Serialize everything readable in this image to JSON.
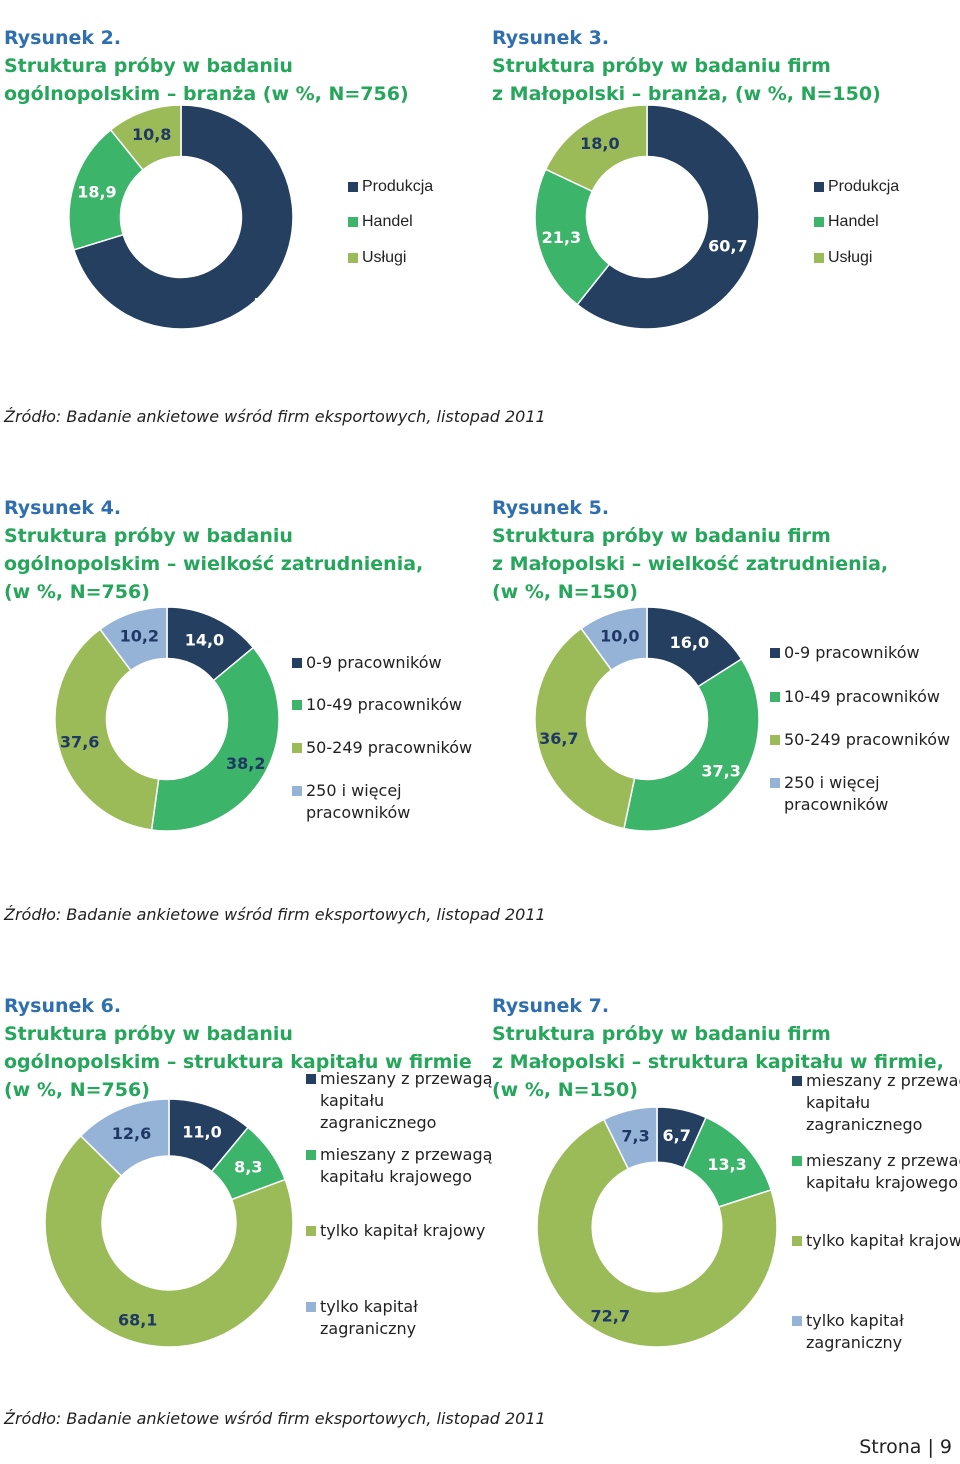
{
  "colors": {
    "navy": "#253f60",
    "green": "#3cb46a",
    "olive": "#9bbb59",
    "lightblue": "#95b3d7",
    "label_dark": "#203864",
    "label_light": "#ffffff"
  },
  "chart_data": [
    {
      "type": "pie",
      "title_num": "Rysunek 2.",
      "title": "Struktura próby w badaniu\nogólnopolskim – branża (w %, N=756)",
      "categories": [
        "Produkcja",
        "Handel",
        "Usługi"
      ],
      "values": [
        70.2,
        18.9,
        10.8
      ],
      "value_labels": [
        "70,2",
        "18,9",
        "10,8"
      ],
      "legend_position": "right"
    },
    {
      "type": "pie",
      "title_num": "Rysunek 3.",
      "title": "Struktura próby w badaniu firm\nz Małopolski – branża, (w %, N=150)",
      "categories": [
        "Produkcja",
        "Handel",
        "Usługi"
      ],
      "values": [
        60.7,
        21.3,
        18.0
      ],
      "value_labels": [
        "60,7",
        "21,3",
        "18,0"
      ],
      "legend_position": "right"
    },
    {
      "type": "pie",
      "title_num": "Rysunek 4.",
      "title": "Struktura próby w badaniu\nogólnopolskim – wielkość zatrudnienia,\n(w %, N=756)",
      "categories": [
        "0-9 pracowników",
        "10-49 pracowników",
        "50-249 pracowników",
        "250 i więcej\npracowników"
      ],
      "values": [
        14.0,
        38.2,
        37.6,
        10.2
      ],
      "value_labels": [
        "14,0",
        "38,2",
        "37,6",
        "10,2"
      ],
      "legend_position": "right"
    },
    {
      "type": "pie",
      "title_num": "Rysunek 5.",
      "title": "Struktura próby w badaniu firm\nz Małopolski – wielkość zatrudnienia,\n(w %, N=150)",
      "categories": [
        "0-9 pracowników",
        "10-49 pracowników",
        "50-249 pracowników",
        "250 i więcej\npracowników"
      ],
      "values": [
        16.0,
        37.3,
        36.7,
        10.0
      ],
      "value_labels": [
        "16,0",
        "37,3",
        "36,7",
        "10,0"
      ],
      "legend_position": "right"
    },
    {
      "type": "pie",
      "title_num": "Rysunek 6.",
      "title": "Struktura próby w badaniu\nogólnopolskim – struktura kapitału w firmie\n(w %, N=756)",
      "categories": [
        "mieszany z przewagą\nkapitału\nzagranicznego",
        "mieszany z przewagą\nkapitału krajowego",
        "tylko kapitał krajowy",
        "tylko kapitał\nzagraniczny"
      ],
      "values": [
        11.0,
        8.3,
        68.1,
        12.6
      ],
      "value_labels": [
        "11,0",
        "8,3",
        "68,1",
        "12,6"
      ],
      "legend_position": "right"
    },
    {
      "type": "pie",
      "title_num": "Rysunek 7.",
      "title": "Struktura próby w badaniu firm\nz Małopolski – struktura kapitału w firmie,\n(w %, N=150)",
      "categories": [
        "mieszany z przewagą\nkapitału\nzagranicznego",
        "mieszany z przewagą\nkapitału krajowego",
        "tylko kapitał krajowy",
        "tylko kapitał\nzagraniczny"
      ],
      "values": [
        6.7,
        13.3,
        72.7,
        7.3
      ],
      "value_labels": [
        "6,7",
        "13,3",
        "72,7",
        "7,3"
      ],
      "legend_position": "right"
    }
  ],
  "sources": [
    "Źródło: Badanie ankietowe wśród firm eksportowych, listopad 2011",
    "Źródło: Badanie ankietowe wśród firm eksportowych, listopad 2011",
    "Źródło: Badanie ankietowe wśród firm eksportowych, listopad 2011"
  ],
  "footer": {
    "label": "Strona",
    "separator": "|",
    "page": "9"
  }
}
